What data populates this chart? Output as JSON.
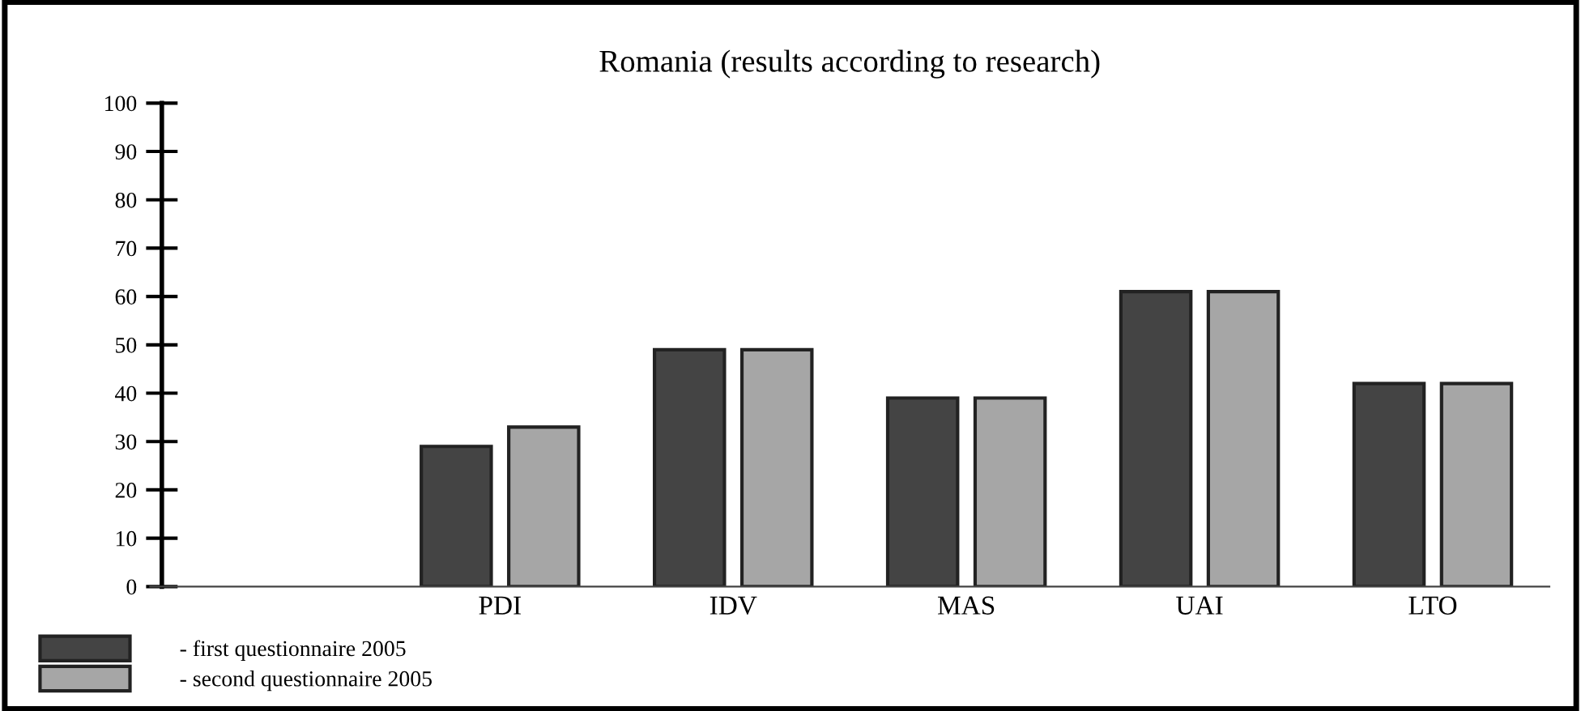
{
  "chart_data": {
    "type": "bar",
    "title": "Romania (results according to research)",
    "categories": [
      null,
      "PDI",
      "IDV",
      "MAS",
      "UAI",
      "LTO"
    ],
    "series": [
      {
        "name": "- first questionnaire 2005",
        "color": "#444444",
        "values": [
          null,
          29,
          49,
          39,
          61,
          42
        ]
      },
      {
        "name": "- second questionnaire 2005",
        "color": "#a6a6a6",
        "values": [
          null,
          33,
          49,
          39,
          61,
          42
        ]
      }
    ],
    "ylim": [
      0,
      100
    ],
    "yticks": [
      0,
      10,
      20,
      30,
      40,
      50,
      60,
      70,
      80,
      90,
      100
    ],
    "grid": false,
    "legend": "bottom left"
  }
}
